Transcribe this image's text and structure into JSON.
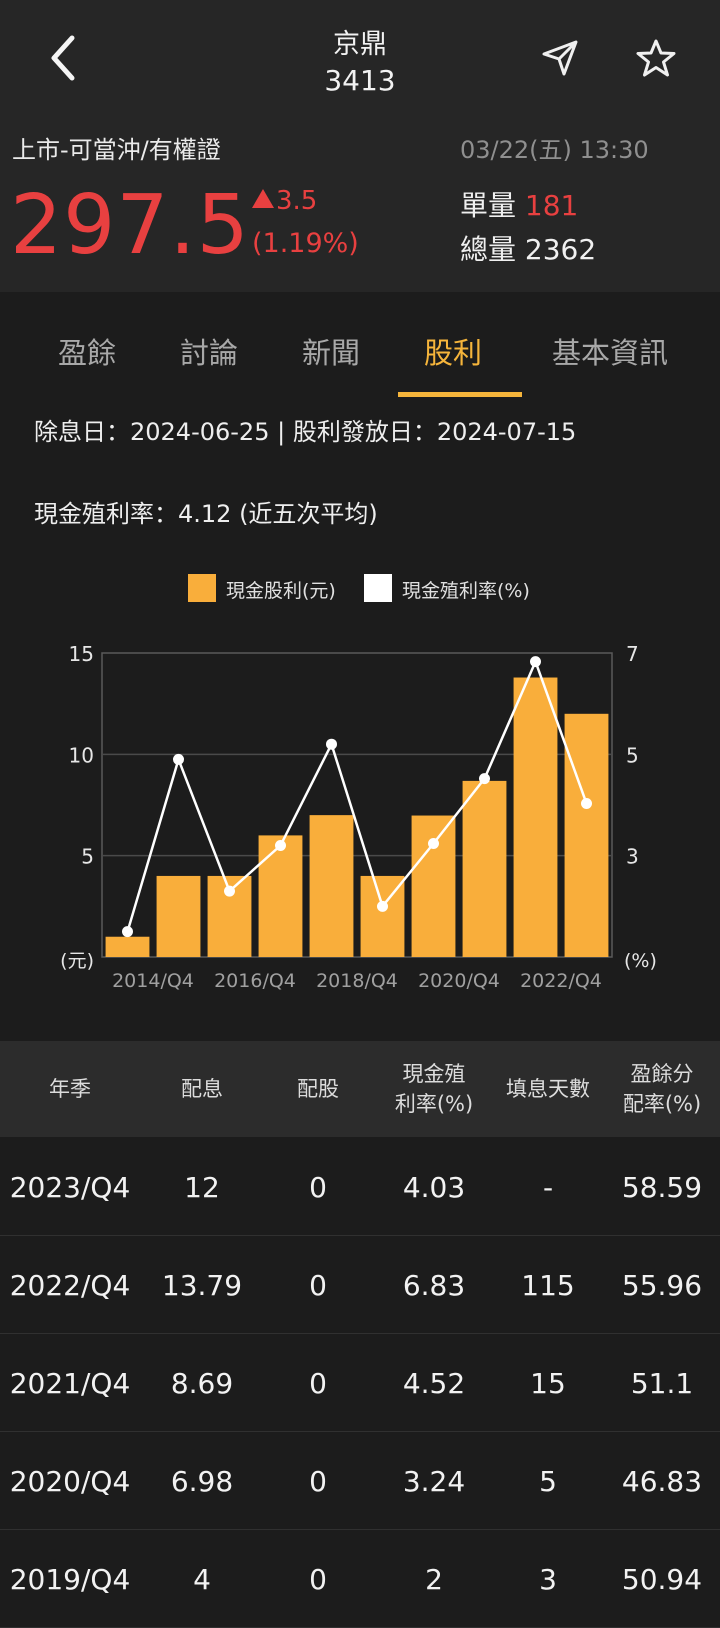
{
  "header": {
    "name": "京鼎",
    "code": "3413",
    "market": "上市-可當沖/有權證",
    "datetime": "03/22(五) 13:30",
    "price": "297.5",
    "change": "3.5",
    "change_pct": "(1.19%)",
    "unit_vol_label": "單量",
    "unit_vol_value": "181",
    "total_vol_label": "總量",
    "total_vol_value": "2362"
  },
  "tabs": [
    "盈餘",
    "討論",
    "新聞",
    "股利",
    "基本資訊"
  ],
  "info": {
    "dates": "除息日：2024-06-25 | 股利發放日：2024-07-15",
    "yield_avg": "現金殖利率：4.12 (近五次平均)"
  },
  "chart_data": {
    "type": "bar",
    "legend": [
      "現金股利(元)",
      "現金殖利率(%)"
    ],
    "left_axis_unit": "(元)",
    "right_axis_unit": "(%)",
    "left_ticks": [
      "15",
      "10",
      "5"
    ],
    "right_ticks": [
      "7",
      "5",
      "3"
    ],
    "x_tick_labels": [
      "2014/Q4",
      "2016/Q4",
      "2018/Q4",
      "2020/Q4",
      "2022/Q4"
    ],
    "categories": [
      "2014/Q4",
      "2015/Q4",
      "2016/Q4",
      "2017/Q4",
      "2018/Q4",
      "2019/Q4",
      "2020/Q4",
      "2021/Q4",
      "2022/Q4",
      "2023/Q4"
    ],
    "left_range": [
      0,
      15
    ],
    "right_range": [
      1,
      7
    ],
    "series": [
      {
        "name": "現金股利(元)",
        "axis": "left",
        "kind": "bar",
        "color": "#f9ae3b",
        "values": [
          1,
          4,
          4,
          6,
          7,
          4,
          6.98,
          8.69,
          13.79,
          12
        ]
      },
      {
        "name": "現金殖利率(%)",
        "axis": "right",
        "kind": "line",
        "color": "#ffffff",
        "values": [
          1.5,
          4.9,
          2.3,
          3.2,
          5.2,
          2.0,
          3.24,
          4.52,
          6.83,
          4.03
        ]
      }
    ]
  },
  "table": {
    "headers": [
      [
        "年季"
      ],
      [
        "配息"
      ],
      [
        "配股"
      ],
      [
        "現金殖",
        "利率(%)"
      ],
      [
        "填息天數"
      ],
      [
        "盈餘分",
        "配率(%)"
      ]
    ],
    "rows": [
      [
        "2023/Q4",
        "12",
        "0",
        "4.03",
        "-",
        "58.59"
      ],
      [
        "2022/Q4",
        "13.79",
        "0",
        "6.83",
        "115",
        "55.96"
      ],
      [
        "2021/Q4",
        "8.69",
        "0",
        "4.52",
        "15",
        "51.1"
      ],
      [
        "2020/Q4",
        "6.98",
        "0",
        "3.24",
        "5",
        "46.83"
      ],
      [
        "2019/Q4",
        "4",
        "0",
        "2",
        "3",
        "50.94"
      ]
    ]
  }
}
